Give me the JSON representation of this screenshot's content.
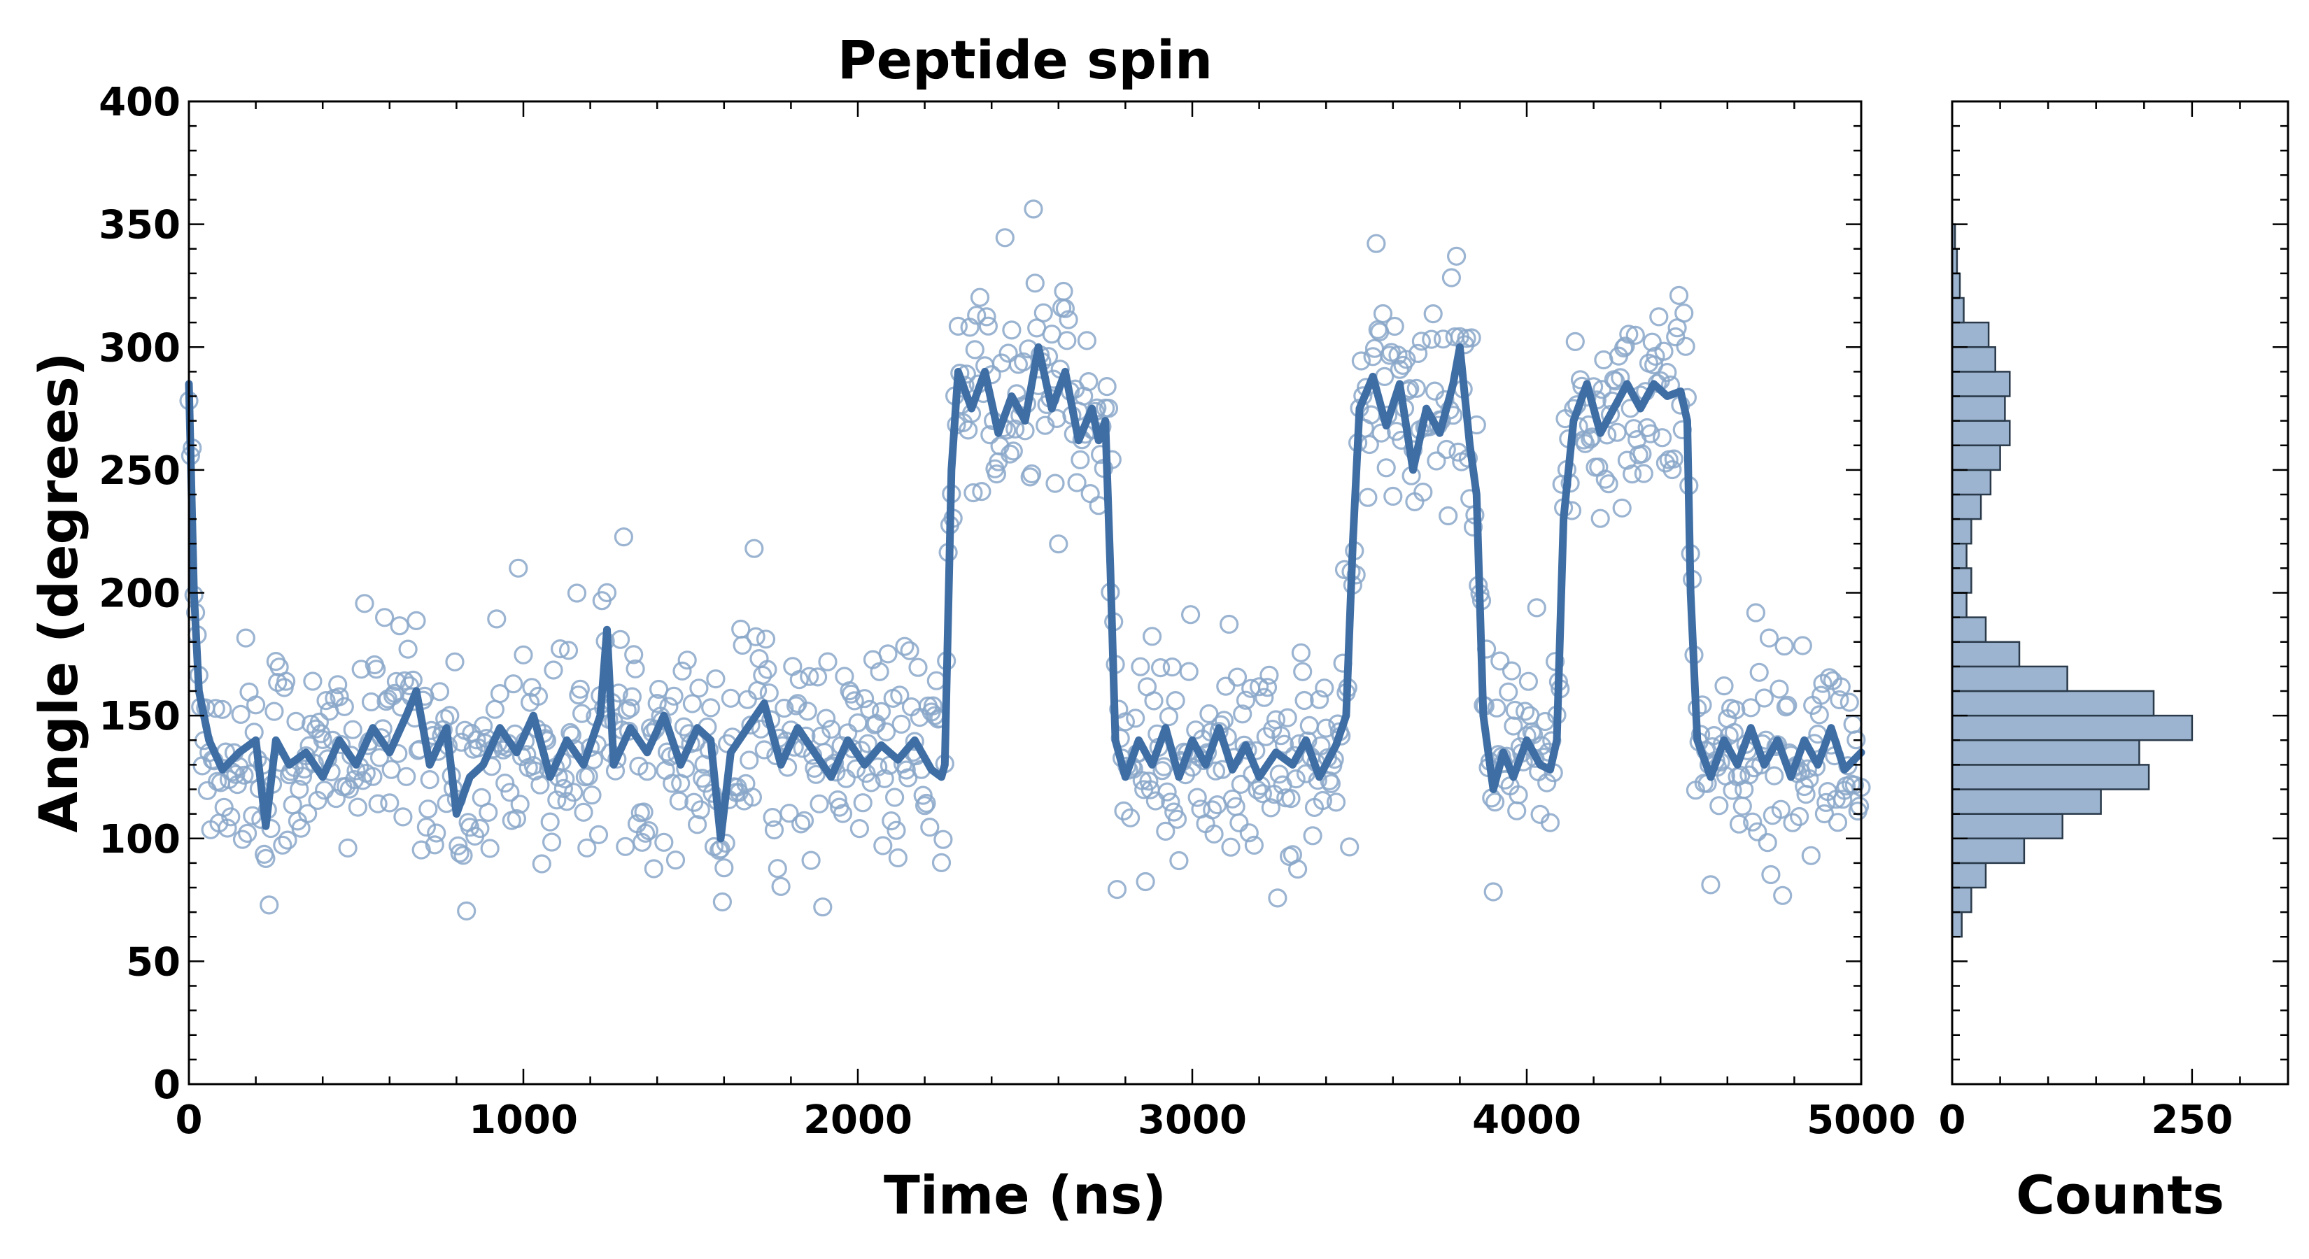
{
  "chart_data": [
    {
      "type": "scatter",
      "title": "Peptide spin",
      "xlabel": "Time (ns)",
      "ylabel": "Angle (degrees)",
      "xlim": [
        0,
        5000
      ],
      "ylim": [
        0,
        400
      ],
      "x_ticks": [
        "0",
        "1000",
        "2000",
        "3000",
        "4000",
        "5000"
      ],
      "y_ticks": [
        "0",
        "50",
        "100",
        "150",
        "200",
        "250",
        "300",
        "350",
        "400"
      ],
      "grid": false,
      "colors": {
        "scatter": "#8aa7c9",
        "line": "#3f6ea5"
      },
      "series": [
        {
          "name": "Angle samples",
          "style": "open circles",
          "description": "raw angle samples every ~5 ns"
        },
        {
          "name": "Smoothed angle",
          "style": "thick line",
          "points": [
            [
              0,
              285
            ],
            [
              15,
              200
            ],
            [
              30,
              160
            ],
            [
              60,
              140
            ],
            [
              100,
              128
            ],
            [
              150,
              135
            ],
            [
              200,
              140
            ],
            [
              230,
              105
            ],
            [
              260,
              140
            ],
            [
              300,
              130
            ],
            [
              350,
              135
            ],
            [
              400,
              125
            ],
            [
              450,
              140
            ],
            [
              500,
              130
            ],
            [
              550,
              145
            ],
            [
              600,
              135
            ],
            [
              650,
              150
            ],
            [
              680,
              160
            ],
            [
              720,
              130
            ],
            [
              770,
              145
            ],
            [
              800,
              110
            ],
            [
              840,
              125
            ],
            [
              880,
              130
            ],
            [
              930,
              145
            ],
            [
              980,
              135
            ],
            [
              1030,
              150
            ],
            [
              1080,
              125
            ],
            [
              1130,
              140
            ],
            [
              1180,
              130
            ],
            [
              1230,
              150
            ],
            [
              1250,
              185
            ],
            [
              1270,
              130
            ],
            [
              1320,
              145
            ],
            [
              1370,
              135
            ],
            [
              1420,
              150
            ],
            [
              1470,
              130
            ],
            [
              1520,
              145
            ],
            [
              1560,
              140
            ],
            [
              1590,
              100
            ],
            [
              1620,
              135
            ],
            [
              1670,
              145
            ],
            [
              1720,
              155
            ],
            [
              1770,
              130
            ],
            [
              1820,
              145
            ],
            [
              1870,
              135
            ],
            [
              1920,
              125
            ],
            [
              1970,
              140
            ],
            [
              2020,
              130
            ],
            [
              2070,
              138
            ],
            [
              2120,
              132
            ],
            [
              2170,
              140
            ],
            [
              2220,
              128
            ],
            [
              2250,
              125
            ],
            [
              2260,
              130
            ],
            [
              2280,
              250
            ],
            [
              2300,
              290
            ],
            [
              2340,
              275
            ],
            [
              2380,
              290
            ],
            [
              2420,
              265
            ],
            [
              2460,
              280
            ],
            [
              2500,
              270
            ],
            [
              2540,
              300
            ],
            [
              2580,
              275
            ],
            [
              2620,
              290
            ],
            [
              2660,
              262
            ],
            [
              2700,
              275
            ],
            [
              2720,
              262
            ],
            [
              2740,
              270
            ],
            [
              2755,
              210
            ],
            [
              2770,
              140
            ],
            [
              2800,
              125
            ],
            [
              2840,
              140
            ],
            [
              2880,
              130
            ],
            [
              2920,
              145
            ],
            [
              2960,
              125
            ],
            [
              3000,
              140
            ],
            [
              3040,
              130
            ],
            [
              3080,
              145
            ],
            [
              3120,
              128
            ],
            [
              3160,
              138
            ],
            [
              3200,
              125
            ],
            [
              3250,
              135
            ],
            [
              3300,
              130
            ],
            [
              3340,
              140
            ],
            [
              3380,
              125
            ],
            [
              3430,
              138
            ],
            [
              3460,
              150
            ],
            [
              3480,
              220
            ],
            [
              3500,
              275
            ],
            [
              3540,
              288
            ],
            [
              3580,
              268
            ],
            [
              3620,
              285
            ],
            [
              3660,
              250
            ],
            [
              3700,
              275
            ],
            [
              3740,
              265
            ],
            [
              3780,
              285
            ],
            [
              3800,
              300
            ],
            [
              3830,
              260
            ],
            [
              3850,
              240
            ],
            [
              3870,
              150
            ],
            [
              3900,
              120
            ],
            [
              3930,
              135
            ],
            [
              3960,
              125
            ],
            [
              4000,
              140
            ],
            [
              4040,
              130
            ],
            [
              4070,
              128
            ],
            [
              4090,
              140
            ],
            [
              4110,
              230
            ],
            [
              4140,
              270
            ],
            [
              4180,
              285
            ],
            [
              4220,
              265
            ],
            [
              4260,
              275
            ],
            [
              4300,
              285
            ],
            [
              4340,
              275
            ],
            [
              4380,
              285
            ],
            [
              4420,
              280
            ],
            [
              4460,
              282
            ],
            [
              4480,
              270
            ],
            [
              4490,
              200
            ],
            [
              4510,
              140
            ],
            [
              4550,
              125
            ],
            [
              4590,
              140
            ],
            [
              4630,
              130
            ],
            [
              4670,
              145
            ],
            [
              4710,
              130
            ],
            [
              4750,
              140
            ],
            [
              4790,
              125
            ],
            [
              4830,
              140
            ],
            [
              4870,
              130
            ],
            [
              4910,
              145
            ],
            [
              4950,
              128
            ],
            [
              5000,
              135
            ]
          ]
        }
      ]
    },
    {
      "type": "bar",
      "orientation": "horizontal",
      "title": "",
      "xlabel": "Counts",
      "ylabel": "",
      "xlim": [
        0,
        350
      ],
      "ylim": [
        0,
        400
      ],
      "x_ticks": [
        "0",
        "250"
      ],
      "bin_width_degrees": 10,
      "colors": {
        "bar": "#9cb4cf",
        "edge": "#2a3a4a"
      },
      "bins": [
        {
          "from": 60,
          "to": 70,
          "count": 10
        },
        {
          "from": 70,
          "to": 80,
          "count": 20
        },
        {
          "from": 80,
          "to": 90,
          "count": 35
        },
        {
          "from": 90,
          "to": 100,
          "count": 75
        },
        {
          "from": 100,
          "to": 110,
          "count": 115
        },
        {
          "from": 110,
          "to": 120,
          "count": 155
        },
        {
          "from": 120,
          "to": 130,
          "count": 205
        },
        {
          "from": 130,
          "to": 140,
          "count": 195
        },
        {
          "from": 140,
          "to": 150,
          "count": 250
        },
        {
          "from": 150,
          "to": 160,
          "count": 210
        },
        {
          "from": 160,
          "to": 170,
          "count": 120
        },
        {
          "from": 170,
          "to": 180,
          "count": 70
        },
        {
          "from": 180,
          "to": 190,
          "count": 35
        },
        {
          "from": 190,
          "to": 200,
          "count": 15
        },
        {
          "from": 200,
          "to": 210,
          "count": 20
        },
        {
          "from": 210,
          "to": 220,
          "count": 15
        },
        {
          "from": 220,
          "to": 230,
          "count": 20
        },
        {
          "from": 230,
          "to": 240,
          "count": 30
        },
        {
          "from": 240,
          "to": 250,
          "count": 40
        },
        {
          "from": 250,
          "to": 260,
          "count": 50
        },
        {
          "from": 260,
          "to": 270,
          "count": 60
        },
        {
          "from": 270,
          "to": 280,
          "count": 55
        },
        {
          "from": 280,
          "to": 290,
          "count": 60
        },
        {
          "from": 290,
          "to": 300,
          "count": 45
        },
        {
          "from": 300,
          "to": 310,
          "count": 38
        },
        {
          "from": 310,
          "to": 320,
          "count": 12
        },
        {
          "from": 320,
          "to": 330,
          "count": 8
        },
        {
          "from": 330,
          "to": 340,
          "count": 5
        },
        {
          "from": 340,
          "to": 350,
          "count": 3
        }
      ]
    }
  ]
}
